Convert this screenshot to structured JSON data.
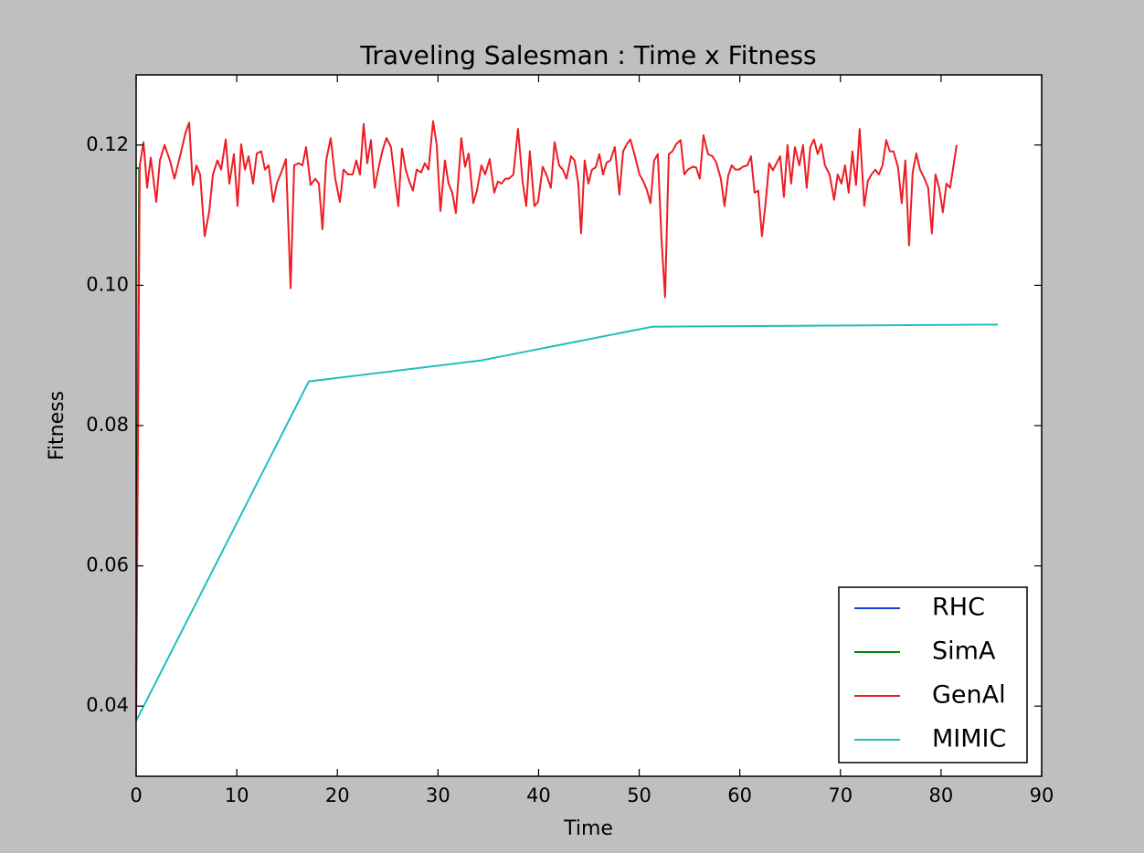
{
  "chart_data": {
    "type": "line",
    "title": "Traveling Salesman : Time x Fitness",
    "xlabel": "Time",
    "ylabel": "Fitness",
    "xlim": [
      0,
      90
    ],
    "ylim": [
      0.03,
      0.13
    ],
    "xticks": [
      0,
      10,
      20,
      30,
      40,
      50,
      60,
      70,
      80,
      90
    ],
    "yticks": [
      0.04,
      0.06,
      0.08,
      {
        "value": 0.1,
        "label": "0.10"
      },
      0.12
    ],
    "legend": "lower right",
    "series": [
      {
        "name": "RHC",
        "color": "#1a3fe0",
        "x": [
          0,
          0.3
        ],
        "values": [
          0.1167,
          0.1167
        ]
      },
      {
        "name": "SimA",
        "color": "#008000",
        "x": [
          0,
          0.3
        ],
        "values": [
          0.039,
          0.1167
        ]
      },
      {
        "name": "GenAl",
        "color": "#ee1c25",
        "x": [
          0,
          0.36,
          0.73,
          1.09,
          1.45,
          2.0,
          2.36,
          2.82,
          3.36,
          3.81,
          4.36,
          4.9,
          5.27,
          5.63,
          5.99,
          6.36,
          6.81,
          7.27,
          7.63,
          8.08,
          8.45,
          8.9,
          9.26,
          9.72,
          10.08,
          10.44,
          10.81,
          11.17,
          11.62,
          11.99,
          12.44,
          12.8,
          13.17,
          13.62,
          13.98,
          14.53,
          14.89,
          15.35,
          15.71,
          16.16,
          16.53,
          16.89,
          17.34,
          17.8,
          18.16,
          18.52,
          18.89,
          19.34,
          19.79,
          20.25,
          20.61,
          21.07,
          21.52,
          21.88,
          22.25,
          22.61,
          22.97,
          23.34,
          23.7,
          24.15,
          24.52,
          24.88,
          25.33,
          25.7,
          26.06,
          26.42,
          26.79,
          27.15,
          27.51,
          27.88,
          28.33,
          28.69,
          29.06,
          29.51,
          29.87,
          30.24,
          30.69,
          31.05,
          31.42,
          31.78,
          32.32,
          32.69,
          33.05,
          33.51,
          33.87,
          34.32,
          34.69,
          35.14,
          35.59,
          35.96,
          36.32,
          36.68,
          37.05,
          37.5,
          37.95,
          38.41,
          38.77,
          39.13,
          39.59,
          39.95,
          40.41,
          40.77,
          41.22,
          41.59,
          42.04,
          42.4,
          42.77,
          43.22,
          43.58,
          43.95,
          44.22,
          44.58,
          44.95,
          45.31,
          45.67,
          46.04,
          46.4,
          46.76,
          47.13,
          47.58,
          48.03,
          48.4,
          48.76,
          49.12,
          49.58,
          50.03,
          50.39,
          50.76,
          51.12,
          51.48,
          51.85,
          52.21,
          52.57,
          52.94,
          53.3,
          53.66,
          54.12,
          54.48,
          54.84,
          55.3,
          55.66,
          56.02,
          56.39,
          56.84,
          57.29,
          57.66,
          58.11,
          58.48,
          58.84,
          59.2,
          59.56,
          59.93,
          60.29,
          60.75,
          61.11,
          61.47,
          61.83,
          62.2,
          62.56,
          62.92,
          63.29,
          63.65,
          64.01,
          64.38,
          64.74,
          65.1,
          65.47,
          65.92,
          66.28,
          66.65,
          67.01,
          67.37,
          67.74,
          68.1,
          68.46,
          68.92,
          69.37,
          69.73,
          70.1,
          70.46,
          70.82,
          71.19,
          71.55,
          71.91,
          72.37,
          72.73,
          73.09,
          73.46,
          73.82,
          74.18,
          74.55,
          74.91,
          75.27,
          75.73,
          76.09,
          76.45,
          76.82,
          77.18,
          77.54,
          77.91,
          78.36,
          78.72,
          79.09,
          79.45,
          79.81,
          80.18,
          80.54,
          80.9,
          81.55
        ],
        "values": [
          0.0379,
          0.1171,
          0.1204,
          0.1139,
          0.1182,
          0.1119,
          0.1178,
          0.12,
          0.1178,
          0.1152,
          0.1184,
          0.1217,
          0.1232,
          0.1143,
          0.1171,
          0.1158,
          0.107,
          0.1106,
          0.1158,
          0.1178,
          0.1165,
          0.1208,
          0.1145,
          0.1187,
          0.1113,
          0.1201,
          0.1165,
          0.1184,
          0.1145,
          0.1188,
          0.1191,
          0.1165,
          0.1171,
          0.1119,
          0.1145,
          0.1165,
          0.118,
          0.0996,
          0.1171,
          0.1174,
          0.1171,
          0.1197,
          0.1143,
          0.1152,
          0.1145,
          0.108,
          0.1178,
          0.121,
          0.1152,
          0.1119,
          0.1165,
          0.1158,
          0.1158,
          0.1178,
          0.1158,
          0.123,
          0.1174,
          0.1207,
          0.1139,
          0.1171,
          0.1194,
          0.121,
          0.1197,
          0.1152,
          0.1113,
          0.1195,
          0.1165,
          0.1148,
          0.1135,
          0.1165,
          0.1161,
          0.1174,
          0.1165,
          0.1234,
          0.1201,
          0.1106,
          0.1178,
          0.1145,
          0.1132,
          0.1103,
          0.121,
          0.1169,
          0.1188,
          0.1117,
          0.1135,
          0.1171,
          0.1158,
          0.118,
          0.1132,
          0.1148,
          0.1145,
          0.1152,
          0.1152,
          0.1158,
          0.1223,
          0.1148,
          0.1113,
          0.1191,
          0.1113,
          0.1119,
          0.1169,
          0.1158,
          0.1139,
          0.1204,
          0.1171,
          0.1165,
          0.1152,
          0.1184,
          0.1178,
          0.1145,
          0.1074,
          0.1178,
          0.1145,
          0.1165,
          0.1168,
          0.1187,
          0.1158,
          0.1175,
          0.1178,
          0.1197,
          0.1129,
          0.1191,
          0.1201,
          0.1208,
          0.1184,
          0.1158,
          0.1149,
          0.1136,
          0.1117,
          0.1178,
          0.1187,
          0.1067,
          0.0983,
          0.1187,
          0.1191,
          0.1201,
          0.1207,
          0.1158,
          0.1165,
          0.1169,
          0.1168,
          0.1152,
          0.1214,
          0.1187,
          0.1184,
          0.1175,
          0.1152,
          0.1113,
          0.1156,
          0.1171,
          0.1165,
          0.1165,
          0.1169,
          0.1171,
          0.1184,
          0.1132,
          0.1135,
          0.107,
          0.1117,
          0.1174,
          0.1164,
          0.1174,
          0.1184,
          0.1126,
          0.12,
          0.1145,
          0.1197,
          0.1171,
          0.12,
          0.1139,
          0.1197,
          0.1208,
          0.1187,
          0.1201,
          0.1171,
          0.1158,
          0.1122,
          0.1158,
          0.1145,
          0.1171,
          0.1132,
          0.1191,
          0.1143,
          0.1223,
          0.1113,
          0.1149,
          0.1158,
          0.1165,
          0.1158,
          0.1171,
          0.1207,
          0.1191,
          0.1191,
          0.1168,
          0.1117,
          0.1178,
          0.1057,
          0.1161,
          0.1188,
          0.1165,
          0.1152,
          0.1139,
          0.1074,
          0.1158,
          0.1139,
          0.1104,
          0.1145,
          0.1139,
          0.12
        ]
      },
      {
        "name": "MIMIC",
        "color": "#1fbfbf",
        "x": [
          0,
          17.16,
          34.32,
          51.3,
          85.64
        ],
        "values": [
          0.0379,
          0.0863,
          0.0893,
          0.0941,
          0.0944
        ]
      }
    ]
  }
}
